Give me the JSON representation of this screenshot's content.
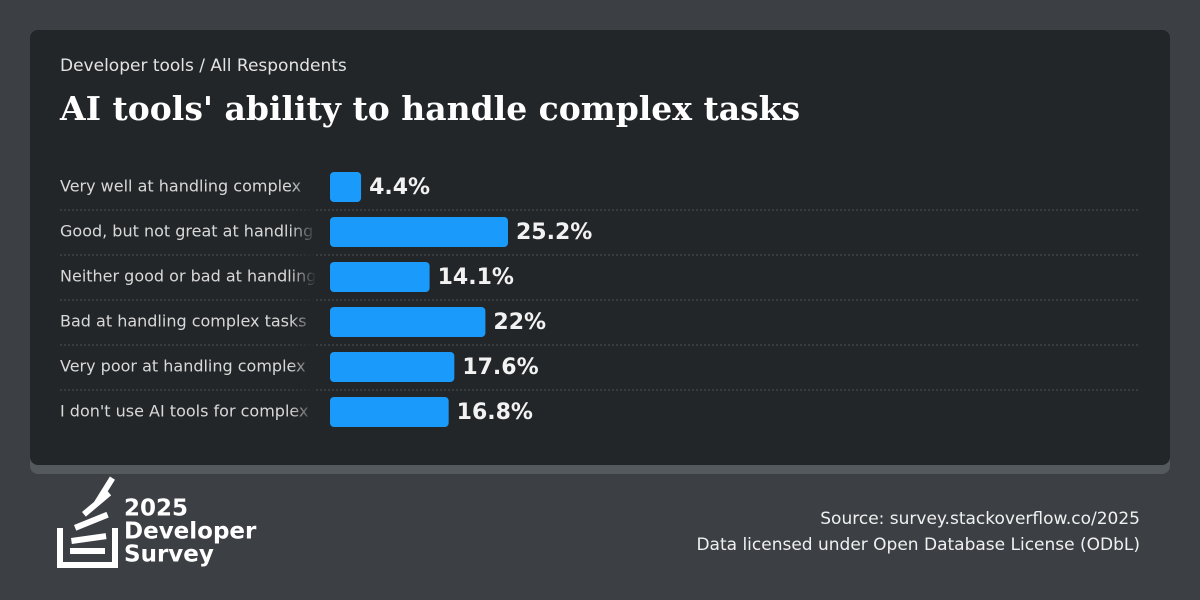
{
  "chart_data": {
    "type": "hbar",
    "subtitle": "Developer tools / All Respondents",
    "title": "AI tools' ability to handle complex tasks",
    "categories": [
      "Very well at handling complex",
      "Good, but not great at handling",
      "Neither good or bad at handling",
      "Bad at handling complex tasks",
      "Very poor at handling complex",
      "I don't use AI tools for complex"
    ],
    "values": [
      4.4,
      25.2,
      14.1,
      22,
      17.6,
      16.8
    ],
    "value_labels": [
      "4.4%",
      "25.2%",
      "14.1%",
      "22%",
      "17.6%",
      "16.8%"
    ],
    "color": "#1a9bfc"
  },
  "branding": {
    "year": "2025",
    "line1": "Developer",
    "line2": "Survey"
  },
  "source": {
    "line1": "Source: survey.stackoverflow.co/2025",
    "line2": "Data licensed under Open Database License (ODbL)"
  }
}
